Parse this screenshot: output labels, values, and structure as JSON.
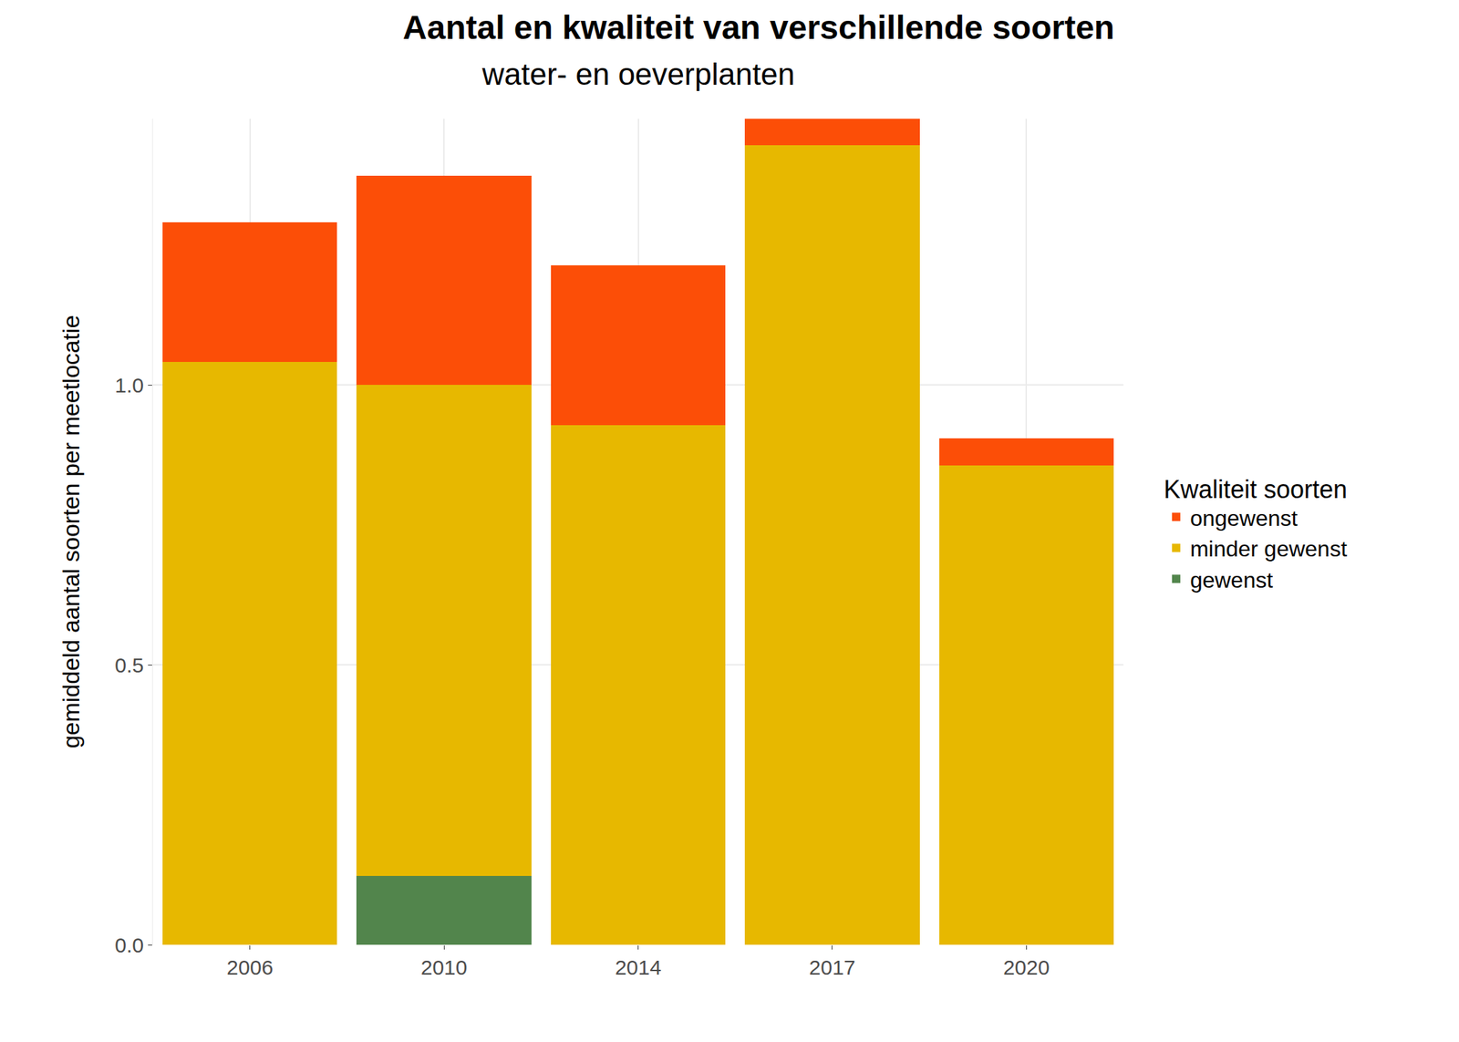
{
  "chart_data": {
    "type": "bar",
    "title": "Aantal en kwaliteit van verschillende soorten",
    "subtitle": "water- en oeverplanten",
    "y_label": "gemiddeld aantal soorten per meetlocatie",
    "legend_title": "Kwaliteit soorten",
    "categories": [
      "2006",
      "2010",
      "2014",
      "2017",
      "2020"
    ],
    "series": [
      {
        "name": "gewenst",
        "color": "#52854C",
        "values": [
          0,
          0.123,
          0,
          0,
          0
        ]
      },
      {
        "name": "minder gewenst",
        "color": "#E7B800",
        "values": [
          1.042,
          0.877,
          0.928,
          1.429,
          0.857
        ]
      },
      {
        "name": "ongewenst",
        "color": "#FC4E07",
        "values": [
          0.249,
          0.374,
          0.286,
          0.047,
          0.048
        ]
      }
    ],
    "stacked": true,
    "ylim": [
      0,
      1.476
    ],
    "yticks": [
      {
        "value": 0,
        "label": "0.0"
      },
      {
        "value": 0.5,
        "label": "0.5"
      },
      {
        "value": 1,
        "label": "1.0"
      }
    ],
    "grid": true,
    "legend": "right"
  }
}
